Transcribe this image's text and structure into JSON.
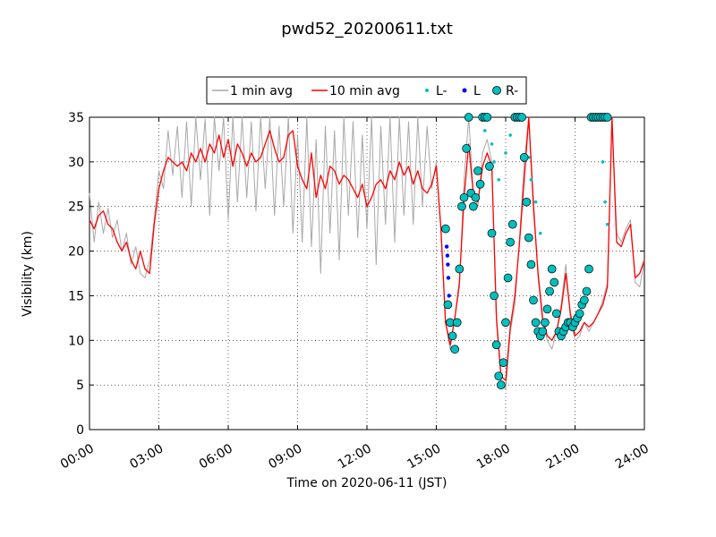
{
  "chart_data": {
    "type": "line",
    "title": "pwd52_20200611.txt",
    "xlabel": "Time on 2020-06-11 (JST)",
    "ylabel": "Visibility (km)",
    "xlim": [
      0,
      24
    ],
    "ylim": [
      0,
      35
    ],
    "x_tick_values": [
      0,
      3,
      6,
      9,
      12,
      15,
      18,
      21,
      24
    ],
    "x_tick_labels": [
      "00:00",
      "03:00",
      "06:00",
      "09:00",
      "12:00",
      "15:00",
      "18:00",
      "21:00",
      "24:00"
    ],
    "y_tick_values": [
      0,
      5,
      10,
      15,
      20,
      25,
      30,
      35
    ],
    "y_tick_labels": [
      "0",
      "5",
      "10",
      "15",
      "20",
      "25",
      "30",
      "35"
    ],
    "grid": true,
    "legend_position": "top-center",
    "series": [
      {
        "name": "1 min avg",
        "color": "#a8a8a8",
        "style": "line",
        "x_hours": [
          0.0,
          0.2,
          0.4,
          0.6,
          0.8,
          1.0,
          1.2,
          1.4,
          1.6,
          1.8,
          2.0,
          2.2,
          2.4,
          2.6,
          2.8,
          3.0,
          3.2,
          3.4,
          3.6,
          3.8,
          4.0,
          4.2,
          4.4,
          4.6,
          4.8,
          5.0,
          5.2,
          5.4,
          5.6,
          5.8,
          6.0,
          6.2,
          6.4,
          6.6,
          6.8,
          7.0,
          7.2,
          7.4,
          7.6,
          7.8,
          8.0,
          8.2,
          8.4,
          8.6,
          8.8,
          9.0,
          9.2,
          9.4,
          9.6,
          9.8,
          10.0,
          10.2,
          10.4,
          10.6,
          10.8,
          11.0,
          11.2,
          11.4,
          11.6,
          11.8,
          12.0,
          12.2,
          12.4,
          12.6,
          12.8,
          13.0,
          13.2,
          13.4,
          13.6,
          13.8,
          14.0,
          14.2,
          14.4,
          14.6,
          14.8,
          15.0,
          15.2,
          15.4,
          15.6,
          15.8,
          16.0,
          16.2,
          16.4,
          16.6,
          16.8,
          17.0,
          17.2,
          17.4,
          17.6,
          17.8,
          18.0,
          18.2,
          18.4,
          18.6,
          18.8,
          19.0,
          19.2,
          19.4,
          19.6,
          19.8,
          20.0,
          20.2,
          20.4,
          20.6,
          20.8,
          21.0,
          21.2,
          21.4,
          21.6,
          21.8,
          22.0,
          22.2,
          22.4,
          22.6,
          22.8,
          23.0,
          23.2,
          23.4,
          23.6,
          23.8,
          24.0
        ],
        "values": [
          26.5,
          21.0,
          25.5,
          22.0,
          24.8,
          21.5,
          23.5,
          20.0,
          22.0,
          18.5,
          20.5,
          17.5,
          17.0,
          19.0,
          23.5,
          29.0,
          27.0,
          33.5,
          28.5,
          34.0,
          26.0,
          34.5,
          25.0,
          35.0,
          28.0,
          34.8,
          24.0,
          35.0,
          29.0,
          35.0,
          23.5,
          35.0,
          25.5,
          35.0,
          26.0,
          34.5,
          24.5,
          35.0,
          27.0,
          35.0,
          24.0,
          34.0,
          25.0,
          35.0,
          22.0,
          33.0,
          21.0,
          35.0,
          20.5,
          32.5,
          17.5,
          34.0,
          22.0,
          33.5,
          19.0,
          35.0,
          24.0,
          34.5,
          21.5,
          33.0,
          22.5,
          35.0,
          18.5,
          34.0,
          23.0,
          35.0,
          21.0,
          35.0,
          24.0,
          34.5,
          23.0,
          35.0,
          25.0,
          34.0,
          27.0,
          30.0,
          22.0,
          12.0,
          9.0,
          12.5,
          16.0,
          28.0,
          35.0,
          26.5,
          25.0,
          31.0,
          32.5,
          30.0,
          12.0,
          5.5,
          4.5,
          11.0,
          14.0,
          21.5,
          30.0,
          35.0,
          26.0,
          17.0,
          12.0,
          10.0,
          9.0,
          11.0,
          14.0,
          18.5,
          12.5,
          10.0,
          10.5,
          12.0,
          11.0,
          12.0,
          13.0,
          14.5,
          16.5,
          35.0,
          22.0,
          21.0,
          22.5,
          23.5,
          16.5,
          16.0,
          19.0
        ]
      },
      {
        "name": "10 min avg",
        "color": "#ff0000",
        "style": "line",
        "x_hours": [
          0.0,
          0.2,
          0.4,
          0.6,
          0.8,
          1.0,
          1.2,
          1.4,
          1.6,
          1.8,
          2.0,
          2.2,
          2.4,
          2.6,
          2.8,
          3.0,
          3.2,
          3.4,
          3.6,
          3.8,
          4.0,
          4.2,
          4.4,
          4.6,
          4.8,
          5.0,
          5.2,
          5.4,
          5.6,
          5.8,
          6.0,
          6.2,
          6.4,
          6.6,
          6.8,
          7.0,
          7.2,
          7.4,
          7.6,
          7.8,
          8.0,
          8.2,
          8.4,
          8.6,
          8.8,
          9.0,
          9.2,
          9.4,
          9.6,
          9.8,
          10.0,
          10.2,
          10.4,
          10.6,
          10.8,
          11.0,
          11.2,
          11.4,
          11.6,
          11.8,
          12.0,
          12.2,
          12.4,
          12.6,
          12.8,
          13.0,
          13.2,
          13.4,
          13.6,
          13.8,
          14.0,
          14.2,
          14.4,
          14.6,
          14.8,
          15.0,
          15.2,
          15.4,
          15.6,
          15.8,
          16.0,
          16.2,
          16.4,
          16.6,
          16.8,
          17.0,
          17.2,
          17.4,
          17.6,
          17.8,
          18.0,
          18.2,
          18.4,
          18.6,
          18.8,
          19.0,
          19.2,
          19.4,
          19.6,
          19.8,
          20.0,
          20.2,
          20.4,
          20.6,
          20.8,
          21.0,
          21.2,
          21.4,
          21.6,
          21.8,
          22.0,
          22.2,
          22.4,
          22.6,
          22.8,
          23.0,
          23.2,
          23.4,
          23.6,
          23.8,
          24.0
        ],
        "values": [
          23.5,
          22.5,
          24.0,
          24.5,
          23.0,
          22.5,
          21.0,
          20.0,
          21.0,
          19.0,
          18.0,
          20.0,
          18.0,
          17.5,
          23.0,
          27.0,
          29.0,
          30.5,
          30.0,
          29.5,
          30.0,
          29.0,
          31.0,
          30.0,
          31.5,
          30.0,
          32.0,
          31.0,
          33.0,
          30.5,
          32.5,
          29.5,
          32.0,
          31.0,
          29.5,
          31.0,
          30.0,
          30.5,
          32.0,
          33.5,
          31.5,
          30.0,
          30.5,
          33.0,
          33.5,
          29.5,
          28.0,
          27.0,
          31.0,
          26.0,
          28.5,
          27.0,
          29.5,
          29.0,
          27.5,
          28.5,
          28.0,
          27.0,
          26.0,
          27.5,
          25.0,
          26.0,
          27.5,
          28.0,
          27.0,
          29.0,
          28.0,
          30.0,
          28.5,
          29.5,
          27.5,
          29.0,
          27.0,
          26.5,
          27.5,
          29.5,
          22.5,
          12.0,
          9.5,
          12.5,
          16.5,
          26.0,
          32.0,
          26.5,
          25.5,
          29.5,
          31.0,
          29.5,
          12.5,
          6.0,
          5.5,
          11.5,
          15.0,
          21.0,
          28.0,
          35.0,
          25.0,
          17.5,
          12.5,
          10.5,
          10.0,
          11.0,
          13.5,
          17.5,
          13.0,
          10.5,
          11.0,
          12.0,
          11.5,
          12.0,
          13.0,
          14.0,
          16.0,
          35.0,
          21.0,
          20.5,
          22.0,
          23.0,
          17.0,
          17.5,
          19.0
        ]
      },
      {
        "name": "L-",
        "color": "#00bfbf",
        "style": "small-dot",
        "x_hours": [
          17.1,
          17.4,
          17.5,
          17.7,
          18.0,
          18.2,
          19.0,
          19.1,
          19.3,
          19.5,
          22.2,
          22.3,
          22.4
        ],
        "values": [
          33.5,
          32.0,
          30.0,
          28.0,
          31.0,
          33.0,
          30.5,
          28.0,
          25.5,
          22.0,
          30.0,
          25.5,
          23.0
        ]
      },
      {
        "name": "L",
        "color": "#0000ff",
        "style": "dot",
        "x_hours": [
          15.45,
          15.48,
          15.5,
          15.52,
          15.55
        ],
        "values": [
          20.5,
          19.5,
          18.5,
          17.0,
          15.0
        ]
      },
      {
        "name": "R-",
        "color": "#00bfbf",
        "style": "circle",
        "x_hours": [
          15.4,
          15.5,
          15.6,
          15.7,
          15.8,
          15.9,
          16.0,
          16.1,
          16.2,
          16.3,
          16.4,
          16.5,
          16.6,
          16.7,
          16.8,
          16.9,
          17.0,
          17.1,
          17.2,
          17.3,
          17.4,
          17.5,
          17.6,
          17.7,
          17.8,
          17.9,
          18.0,
          18.1,
          18.2,
          18.3,
          18.4,
          18.5,
          18.6,
          18.7,
          18.8,
          18.9,
          19.0,
          19.1,
          19.2,
          19.3,
          19.4,
          19.5,
          19.6,
          19.7,
          19.8,
          19.9,
          20.0,
          20.1,
          20.2,
          20.3,
          20.4,
          20.5,
          20.6,
          20.7,
          20.8,
          20.9,
          21.0,
          21.1,
          21.2,
          21.3,
          21.4,
          21.5,
          21.6,
          21.7,
          21.8,
          21.9,
          22.0,
          22.1,
          22.2,
          22.3,
          22.4
        ],
        "values": [
          22.5,
          14.0,
          12.0,
          10.5,
          9.0,
          12.0,
          18.0,
          25.0,
          26.0,
          31.5,
          35.0,
          26.5,
          25.0,
          26.0,
          29.0,
          27.5,
          35.0,
          35.0,
          35.0,
          29.5,
          22.0,
          15.0,
          9.5,
          6.0,
          5.0,
          7.5,
          12.0,
          17.0,
          21.0,
          23.0,
          35.0,
          35.0,
          35.0,
          35.0,
          30.5,
          25.5,
          21.5,
          18.5,
          14.5,
          12.0,
          11.0,
          10.5,
          11.0,
          12.0,
          13.5,
          15.5,
          18.0,
          16.5,
          13.0,
          11.0,
          10.5,
          11.0,
          11.5,
          12.0,
          12.0,
          11.5,
          12.0,
          12.5,
          13.0,
          14.0,
          14.5,
          15.5,
          18.0,
          35.0,
          35.0,
          35.0,
          35.0,
          35.0,
          35.0,
          35.0,
          35.0
        ]
      }
    ]
  }
}
